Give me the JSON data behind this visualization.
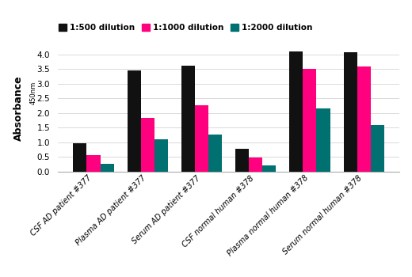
{
  "categories": [
    "CSF AD patient #377",
    "Plasma AD patient #377",
    "Serum AD patient #377",
    "CSF normal human #378",
    "Plasma normal human #378",
    "Serum normal human #378"
  ],
  "series": {
    "1:500 dilution": [
      0.98,
      3.45,
      3.62,
      0.78,
      4.12,
      4.08
    ],
    "1:1000 dilution": [
      0.57,
      1.85,
      2.28,
      0.48,
      3.5,
      3.6
    ],
    "1:2000 dilution": [
      0.28,
      1.12,
      1.28,
      0.22,
      2.17,
      1.6
    ]
  },
  "colors": {
    "1:500 dilution": "#111111",
    "1:1000 dilution": "#FF007F",
    "1:2000 dilution": "#007070"
  },
  "ylabel_main": "Absorbance",
  "ylabel_sub": "450nm",
  "ylim": [
    0,
    4.35
  ],
  "yticks": [
    0,
    0.5,
    1.0,
    1.5,
    2.0,
    2.5,
    3.0,
    3.5,
    4.0
  ],
  "bar_width": 0.25,
  "figsize": [
    5.2,
    3.5
  ],
  "dpi": 100,
  "background_color": "#ffffff"
}
